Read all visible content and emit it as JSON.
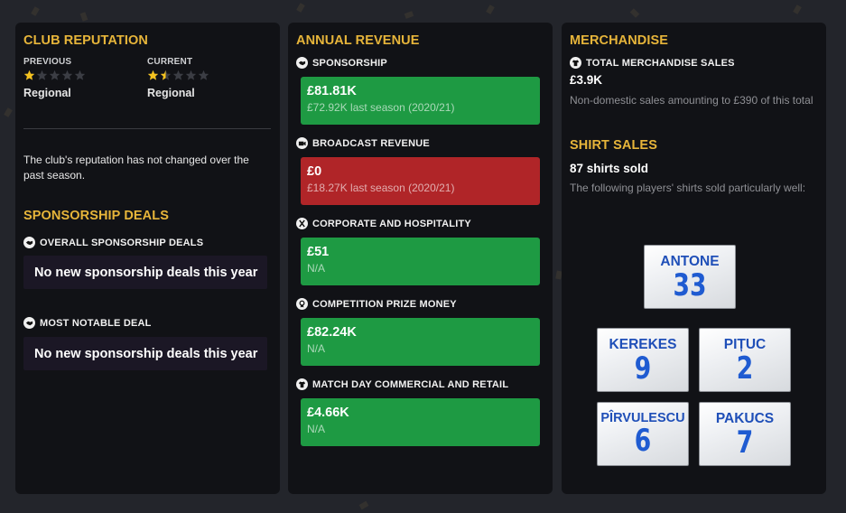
{
  "colors": {
    "accent": "#e7b53a",
    "green": "#1e9a43",
    "red": "#b02528",
    "star": "#f4c21f"
  },
  "club_reputation": {
    "title": "CLUB REPUTATION",
    "previous": {
      "label": "PREVIOUS",
      "value": "Regional",
      "stars": 1.0
    },
    "current": {
      "label": "CURRENT",
      "value": "Regional",
      "stars": 1.5
    },
    "max_stars": 5,
    "note": "The club's reputation has not changed over the past season."
  },
  "sponsorship_deals": {
    "title": "SPONSORSHIP DEALS",
    "overall": {
      "label": "OVERALL SPONSORSHIP DEALS",
      "icon": "handshake-icon",
      "value": "No new sponsorship deals this year"
    },
    "notable": {
      "label": "MOST NOTABLE DEAL",
      "icon": "handshake-icon",
      "value": "No new sponsorship deals this year"
    }
  },
  "annual_revenue": {
    "title": "ANNUAL REVENUE",
    "items": [
      {
        "label": "SPONSORSHIP",
        "icon": "handshake-icon",
        "amount": "£81.81K",
        "sub": "£72.92K last season (2020/21)",
        "status": "green"
      },
      {
        "label": "BROADCAST REVENUE",
        "icon": "camera-icon",
        "amount": "£0",
        "sub": "£18.27K last season (2020/21)",
        "status": "red"
      },
      {
        "label": "CORPORATE AND HOSPITALITY",
        "icon": "cutlery-icon",
        "amount": "£51",
        "sub": "N/A",
        "status": "green"
      },
      {
        "label": "COMPETITION PRIZE MONEY",
        "icon": "medal-icon",
        "amount": "£82.24K",
        "sub": "N/A",
        "status": "green"
      },
      {
        "label": "MATCH DAY COMMERCIAL AND RETAIL",
        "icon": "shirt-icon",
        "amount": "£4.66K",
        "sub": "N/A",
        "status": "green"
      }
    ]
  },
  "merchandise": {
    "title": "MERCHANDISE",
    "total_label": "TOTAL MERCHANDISE SALES",
    "total_icon": "shirt-icon",
    "total_value": "£3.9K",
    "total_note": "Non-domestic sales amounting to £390 of this total"
  },
  "shirt_sales": {
    "title": "SHIRT SALES",
    "count_text": "87 shirts sold",
    "note": "The following players' shirts sold particularly well:",
    "shirts": [
      {
        "name": "ANTONE",
        "number": "33"
      },
      {
        "name": "KEREKES",
        "number": "9"
      },
      {
        "name": "PIȚUC",
        "number": "2"
      },
      {
        "name": "PÎRVULESCU",
        "number": "6"
      },
      {
        "name": "PAKUCS",
        "number": "7"
      }
    ]
  }
}
